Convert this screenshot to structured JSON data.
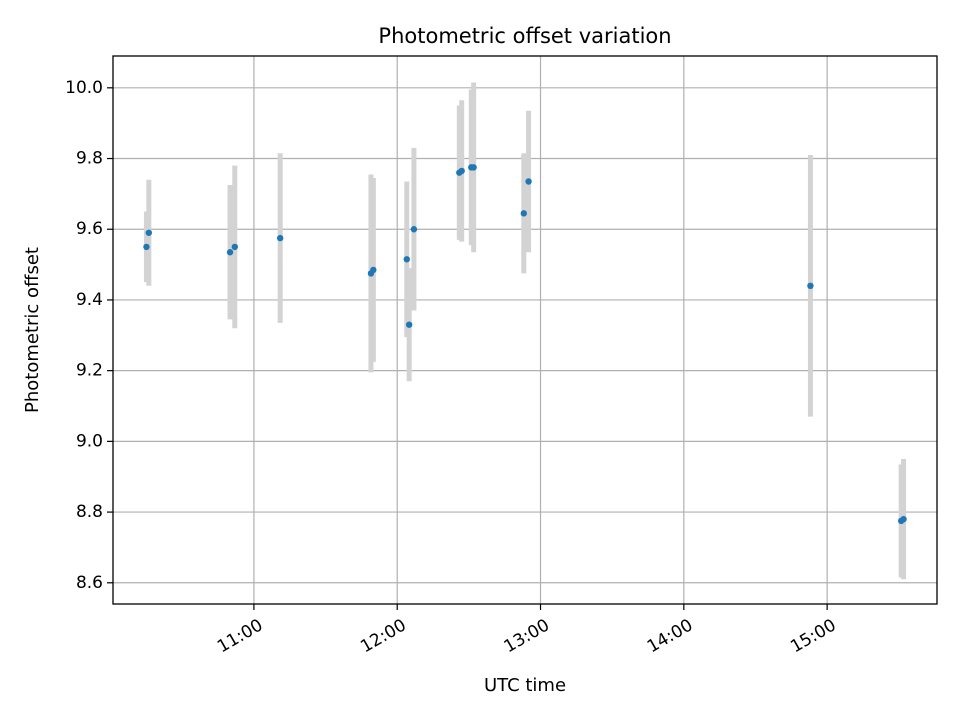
{
  "chart_data": {
    "type": "scatter",
    "title": "Photometric offset variation",
    "xlabel": "UTC time",
    "ylabel": "Photometric offset",
    "x_ticks": [
      "11:00",
      "12:00",
      "13:00",
      "14:00",
      "15:00"
    ],
    "y_ticks": [
      "8.6",
      "8.8",
      "9.0",
      "9.2",
      "9.4",
      "9.6",
      "9.8",
      "10.0"
    ],
    "xlim": [
      "10:01",
      "15:46"
    ],
    "ylim": [
      8.54,
      10.09
    ],
    "grid": true,
    "colors": {
      "point": "#1f77b4",
      "errorbar": "#d3d3d3",
      "grid": "#b0b0b0"
    },
    "points": [
      {
        "time": "10:15",
        "y": 9.55,
        "err": 0.1
      },
      {
        "time": "10:16",
        "y": 9.59,
        "err": 0.15
      },
      {
        "time": "10:50",
        "y": 9.535,
        "err": 0.19
      },
      {
        "time": "10:52",
        "y": 9.55,
        "err": 0.23
      },
      {
        "time": "11:11",
        "y": 9.575,
        "err": 0.24
      },
      {
        "time": "11:49",
        "y": 9.475,
        "err": 0.28
      },
      {
        "time": "11:50",
        "y": 9.485,
        "err": 0.26
      },
      {
        "time": "12:04",
        "y": 9.515,
        "err": 0.22
      },
      {
        "time": "12:05",
        "y": 9.33,
        "err": 0.16
      },
      {
        "time": "12:07",
        "y": 9.6,
        "err": 0.23
      },
      {
        "time": "12:26",
        "y": 9.76,
        "err": 0.19
      },
      {
        "time": "12:27",
        "y": 9.765,
        "err": 0.2
      },
      {
        "time": "12:31",
        "y": 9.775,
        "err": 0.22
      },
      {
        "time": "12:32",
        "y": 9.775,
        "err": 0.24
      },
      {
        "time": "12:53",
        "y": 9.645,
        "err": 0.17
      },
      {
        "time": "12:55",
        "y": 9.735,
        "err": 0.2
      },
      {
        "time": "14:53",
        "y": 9.44,
        "err": 0.37
      },
      {
        "time": "15:31",
        "y": 8.775,
        "err": 0.16
      },
      {
        "time": "15:32",
        "y": 8.78,
        "err": 0.17
      }
    ]
  }
}
